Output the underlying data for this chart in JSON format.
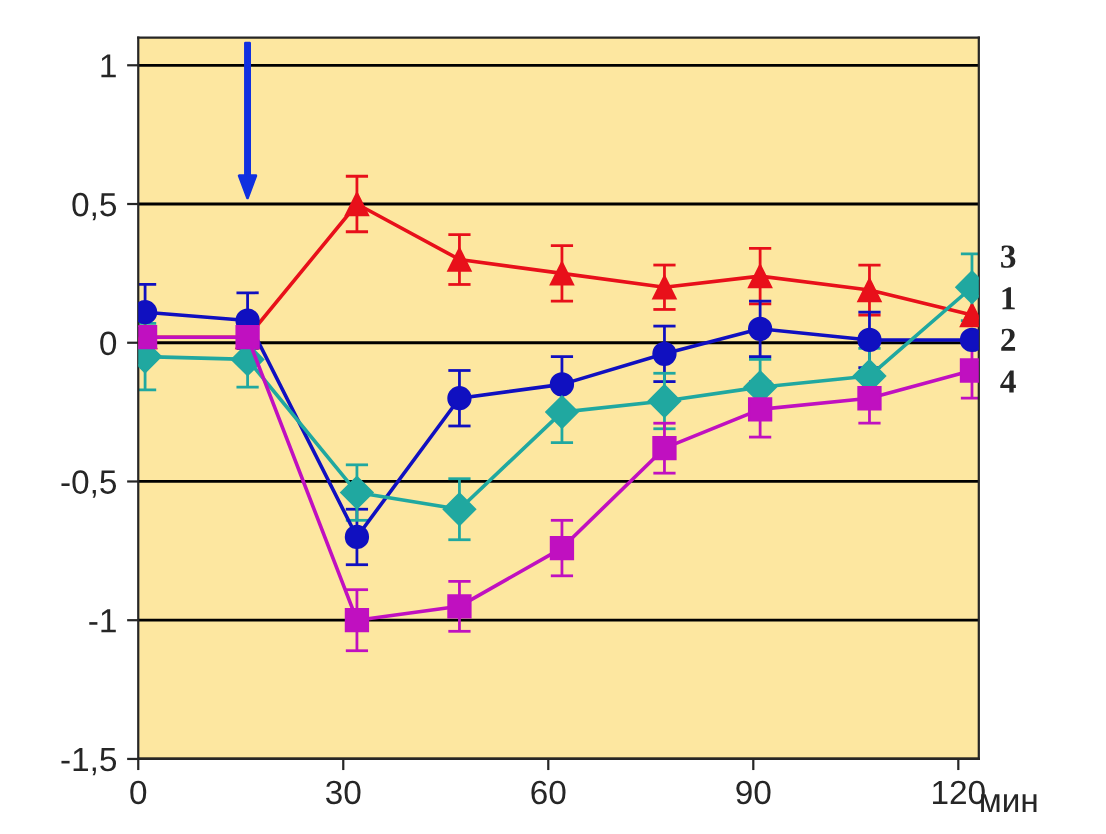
{
  "chart_data": {
    "type": "line",
    "xlabel": "мин",
    "x": [
      1,
      16,
      32,
      47,
      62,
      77,
      91,
      107,
      122
    ],
    "xlim": [
      0,
      123
    ],
    "xticks": [
      0,
      30,
      60,
      90,
      120
    ],
    "ylim": [
      -1.5,
      1.1
    ],
    "yticks": [
      {
        "value": 1,
        "label": "1"
      },
      {
        "value": 0.5,
        "label": "0,5"
      },
      {
        "value": 0,
        "label": "0"
      },
      {
        "value": -0.5,
        "label": "-0,5"
      },
      {
        "value": -1,
        "label": "-1"
      },
      {
        "value": -1.5,
        "label": "-1,5"
      }
    ],
    "grid": "y",
    "line_style": "solid",
    "legend": false,
    "series": [
      {
        "name": "1",
        "color": "#e8101a",
        "marker": "triangle",
        "values": [
          0.02,
          0.02,
          0.5,
          0.3,
          0.25,
          0.2,
          0.24,
          0.19,
          0.1
        ],
        "errors": [
          null,
          null,
          0.1,
          0.09,
          0.1,
          0.08,
          0.1,
          0.09,
          null
        ]
      },
      {
        "name": "2",
        "color": "#1010c0",
        "marker": "circle",
        "values": [
          0.11,
          0.08,
          -0.7,
          -0.2,
          -0.15,
          -0.04,
          0.05,
          0.01,
          0.01
        ],
        "errors": [
          0.1,
          0.1,
          0.1,
          0.1,
          0.1,
          0.1,
          0.1,
          0.1,
          null
        ]
      },
      {
        "name": "3",
        "color": "#20a8a0",
        "marker": "diamond",
        "values": [
          -0.05,
          -0.06,
          -0.54,
          -0.6,
          -0.25,
          -0.21,
          -0.16,
          -0.12,
          0.2
        ],
        "errors": [
          0.12,
          0.1,
          0.1,
          0.11,
          0.11,
          0.1,
          0.1,
          0.1,
          0.12
        ]
      },
      {
        "name": "4",
        "color": "#c010c0",
        "marker": "square",
        "values": [
          0.02,
          0.02,
          -1.0,
          -0.95,
          -0.74,
          -0.38,
          -0.24,
          -0.2,
          -0.1
        ],
        "errors": [
          null,
          null,
          0.11,
          0.09,
          0.1,
          0.09,
          0.1,
          0.09,
          0.1
        ]
      }
    ]
  }
}
